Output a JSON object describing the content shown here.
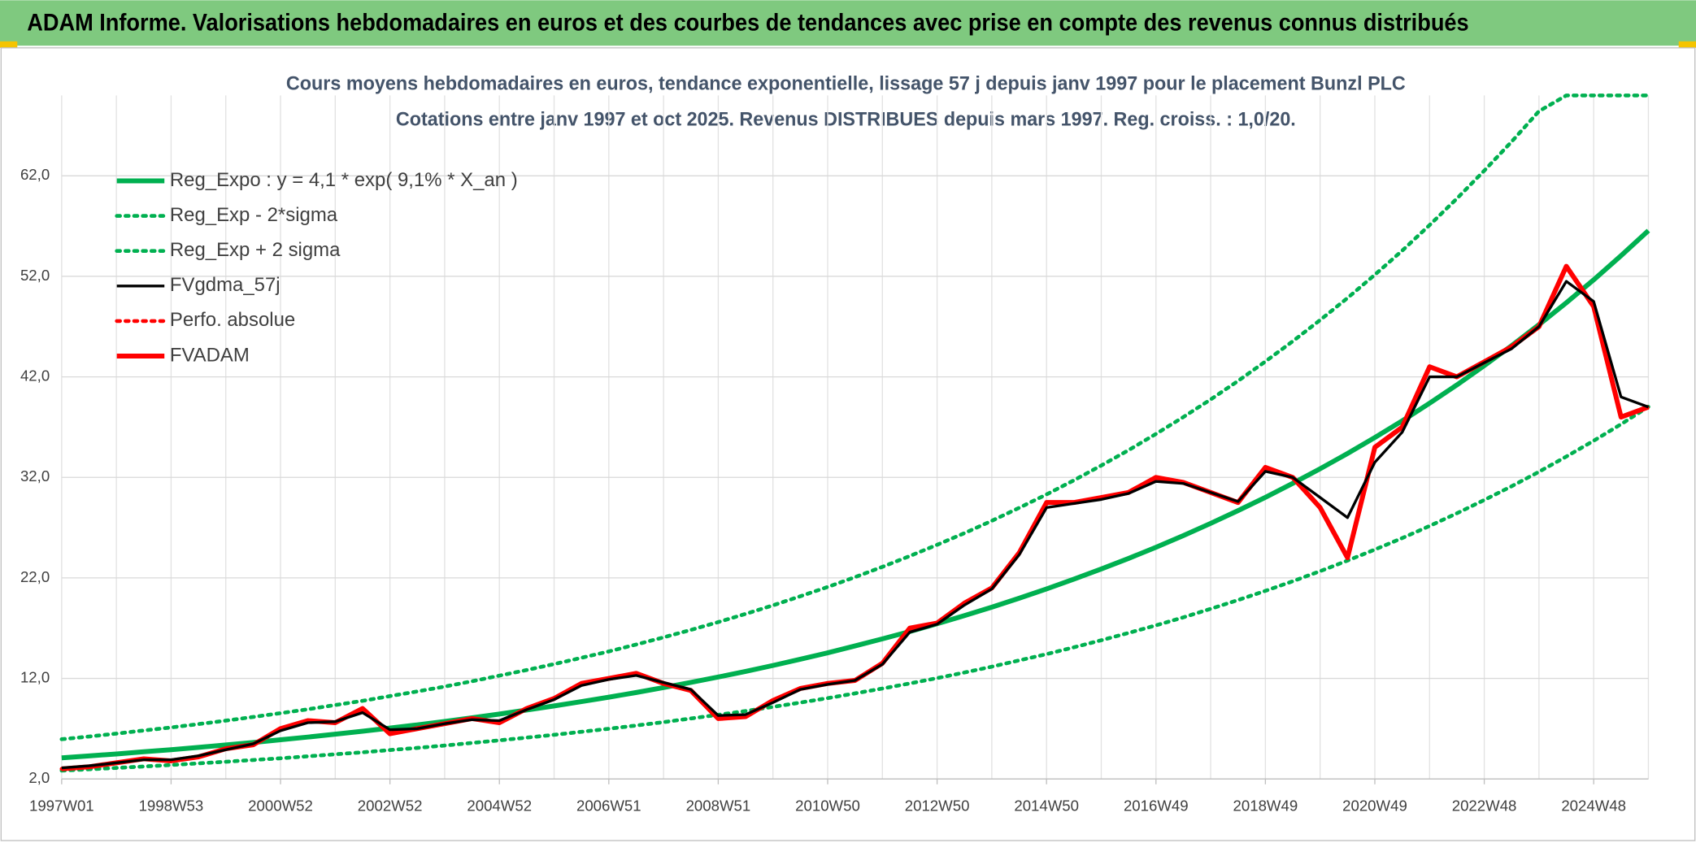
{
  "header_title": "ADAM Informe. Valorisations hebdomadaires en euros et des courbes de tendances avec prise en compte des revenus connus distribués",
  "chart_data": {
    "type": "line",
    "title": "Cours moyens hebdomadaires en euros, tendance exponentielle, lissage 57 j depuis janv 1997 pour le placement Bunzl PLC",
    "subtitle": "Cotations entre janv 1997 et oct 2025. Revenus DISTRIBUES depuis mars 1997. Reg. croiss. : 1,0/20.",
    "categories": [
      "1997W01",
      null,
      null,
      null,
      "1998W53",
      null,
      null,
      null,
      "2000W52",
      null,
      null,
      null,
      "2002W52",
      null,
      null,
      null,
      "2004W52",
      null,
      null,
      null,
      "2006W51",
      null,
      null,
      null,
      "2008W51",
      null,
      null,
      null,
      "2010W50",
      null,
      null,
      null,
      "2012W50",
      null,
      null,
      null,
      "2014W50",
      null,
      null,
      null,
      "2016W49",
      null,
      null,
      null,
      "2018W49",
      null,
      null,
      null,
      "2020W49",
      null,
      null,
      null,
      "2022W48",
      null,
      null,
      null,
      "2024W48",
      null,
      null
    ],
    "ylim": [
      2,
      70
    ],
    "yticks": [
      {
        "value": 2,
        "label": "2,0"
      },
      {
        "value": 12,
        "label": "12,0"
      },
      {
        "value": 22,
        "label": "22,0"
      },
      {
        "value": 32,
        "label": "32,0"
      },
      {
        "value": 42,
        "label": "42,0"
      },
      {
        "value": 52,
        "label": "52,0"
      },
      {
        "value": 62,
        "label": "62,0"
      }
    ],
    "grid": true,
    "legend": "upper left",
    "series": [
      {
        "name": "Reg_Expo : y = 4,1 * exp( 9,1% *  X_an )",
        "color": "#00b050",
        "style": "solid",
        "values": [
          4.1,
          4.29,
          4.49,
          4.7,
          4.91,
          5.14,
          5.38,
          5.63,
          5.89,
          6.16,
          6.45,
          6.74,
          7.06,
          7.38,
          7.72,
          8.08,
          8.46,
          8.85,
          9.26,
          9.69,
          10.13,
          10.6,
          11.09,
          11.61,
          12.14,
          12.7,
          13.29,
          13.91,
          14.55,
          15.23,
          15.93,
          16.67,
          17.44,
          18.25,
          19.09,
          19.98,
          20.9,
          21.87,
          22.88,
          23.94,
          25.05,
          26.21,
          27.42,
          28.69,
          30.02,
          31.41,
          32.86,
          34.38,
          35.97,
          37.63,
          39.38,
          41.2,
          43.11,
          45.1,
          47.19,
          49.37,
          51.66,
          54.05,
          56.55
        ]
      },
      {
        "name": "Reg_Exp - 2*sigma",
        "color": "#00b050",
        "style": "dotted",
        "values": [
          2.83,
          2.96,
          3.1,
          3.24,
          3.39,
          3.55,
          3.71,
          3.88,
          4.06,
          4.25,
          4.45,
          4.65,
          4.87,
          5.09,
          5.33,
          5.58,
          5.84,
          6.11,
          6.39,
          6.69,
          6.99,
          7.31,
          7.65,
          8.01,
          8.38,
          8.76,
          9.17,
          9.6,
          10.04,
          10.51,
          10.99,
          11.5,
          12.03,
          12.59,
          13.17,
          13.79,
          14.42,
          15.09,
          15.79,
          16.52,
          17.28,
          18.08,
          18.92,
          19.8,
          20.71,
          21.67,
          22.67,
          23.72,
          24.82,
          25.96,
          27.17,
          28.43,
          29.75,
          31.12,
          32.56,
          34.07,
          35.65,
          37.29,
          39.02
        ]
      },
      {
        "name": "Reg_Exp + 2 sigma",
        "color": "#00b050",
        "style": "dotted",
        "values": [
          5.95,
          6.22,
          6.51,
          6.82,
          7.12,
          7.45,
          7.8,
          8.16,
          8.54,
          8.93,
          9.35,
          9.77,
          10.24,
          10.7,
          11.19,
          11.72,
          12.27,
          12.83,
          13.43,
          14.05,
          14.69,
          15.37,
          16.08,
          16.83,
          17.6,
          18.42,
          19.27,
          20.17,
          21.1,
          22.08,
          23.1,
          24.17,
          25.29,
          26.46,
          27.68,
          28.97,
          30.31,
          31.71,
          33.18,
          34.71,
          36.32,
          38.0,
          39.76,
          41.6,
          43.53,
          45.54,
          47.65,
          49.85,
          52.16,
          54.56,
          57.1,
          59.74,
          62.51,
          65.4,
          68.43,
          70,
          70,
          70,
          70
        ]
      },
      {
        "name": "FVgdma_57j",
        "color": "#000000",
        "style": "solid",
        "values": [
          3.1,
          3.3,
          3.6,
          3.9,
          3.9,
          4.3,
          4.9,
          5.5,
          6.8,
          7.6,
          7.7,
          8.6,
          6.9,
          7.0,
          7.5,
          7.9,
          7.8,
          8.9,
          9.9,
          11.3,
          11.9,
          12.3,
          11.6,
          10.9,
          8.3,
          8.4,
          9.6,
          10.9,
          11.4,
          11.8,
          13.4,
          16.6,
          17.4,
          19.3,
          20.9,
          24.3,
          29.0,
          29.4,
          29.8,
          30.4,
          31.6,
          31.4,
          30.5,
          29.6,
          32.6,
          32.0,
          30.0,
          28.0,
          33.5,
          36.5,
          42.0,
          42.0,
          43.4,
          44.8,
          47.0,
          51.5,
          49.5,
          40.0,
          39.0
        ]
      },
      {
        "name": "Perfo. absolue",
        "color": "#ff0000",
        "style": "dotted",
        "values": [
          3.0,
          3.2,
          3.6,
          4.0,
          3.8,
          4.2,
          5.0,
          5.4,
          7.0,
          7.8,
          7.6,
          9.0,
          6.5,
          7.0,
          7.5,
          8.0,
          7.6,
          9.0,
          10.0,
          11.5,
          12.0,
          12.5,
          11.5,
          10.8,
          8.0,
          8.2,
          9.8,
          11.0,
          11.5,
          11.8,
          13.5,
          17.0,
          17.5,
          19.5,
          21.0,
          24.5,
          29.5,
          29.5,
          30.0,
          30.5,
          32.0,
          31.5,
          30.5,
          29.5,
          33.0,
          32.0,
          29.0,
          24.0,
          35.0,
          37.0,
          43.0,
          42.0,
          43.5,
          45.0,
          47.0,
          53.0,
          49.0,
          38.0,
          39.0
        ]
      },
      {
        "name": "FVADAM",
        "color": "#ff0000",
        "style": "solid",
        "values": [
          3.0,
          3.2,
          3.6,
          4.0,
          3.8,
          4.2,
          5.0,
          5.4,
          7.0,
          7.8,
          7.6,
          9.0,
          6.5,
          7.0,
          7.5,
          8.0,
          7.6,
          9.0,
          10.0,
          11.5,
          12.0,
          12.5,
          11.5,
          10.8,
          8.0,
          8.2,
          9.8,
          11.0,
          11.5,
          11.8,
          13.5,
          17.0,
          17.5,
          19.5,
          21.0,
          24.5,
          29.5,
          29.5,
          30.0,
          30.5,
          32.0,
          31.5,
          30.5,
          29.5,
          33.0,
          32.0,
          29.0,
          24.0,
          35.0,
          37.0,
          43.0,
          42.0,
          43.5,
          45.0,
          47.0,
          53.0,
          49.0,
          38.0,
          39.0
        ]
      }
    ]
  }
}
